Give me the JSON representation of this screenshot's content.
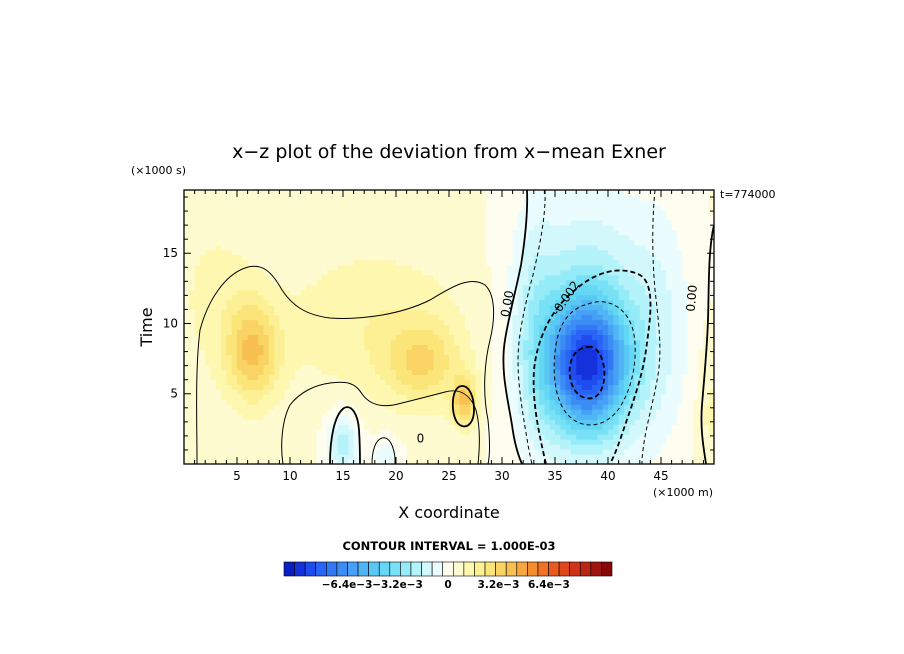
{
  "chart_data": {
    "type": "heatmap",
    "title": "x−z plot of the deviation from x−mean Exner",
    "xlabel": "X coordinate",
    "ylabel": "Time",
    "x_unit": "(×1000 m)",
    "y_unit": "(×1000 s)",
    "time_label": "t=774000",
    "xlim": [
      0,
      50
    ],
    "ylim": [
      0,
      19.5
    ],
    "x_ticks": [
      5,
      10,
      15,
      20,
      25,
      30,
      35,
      40,
      45
    ],
    "y_ticks": [
      5,
      10,
      15
    ],
    "contour_labels": [
      {
        "text": "0.00",
        "x": 30.5,
        "y": 11.4,
        "rotate": -80
      },
      {
        "text": "-0.002",
        "x": 36.0,
        "y": 11.8,
        "rotate": -55
      },
      {
        "text": "0.00",
        "x": 47.9,
        "y": 11.8,
        "rotate": -85
      },
      {
        "text": "0",
        "x": 22.3,
        "y": 1.8,
        "rotate": 0
      }
    ],
    "colorbar": {
      "interval_label": "CONTOUR INTERVAL = 1.000E-03",
      "tick_labels": [
        "−6.4e−3",
        "−3.2e−3",
        "0",
        "3.2e−3",
        "6.4e−3"
      ],
      "tick_values": [
        -0.0064,
        -0.0032,
        0,
        0.0032,
        0.0064
      ],
      "range": [
        -0.0104,
        0.0104
      ],
      "colors": [
        "#0a1ec8",
        "#1432dc",
        "#1e4cf0",
        "#2864f5",
        "#3278f5",
        "#3c8cf5",
        "#46a0f5",
        "#50b4f5",
        "#5ac8f5",
        "#64d7f5",
        "#78e1f5",
        "#96ebf8",
        "#b4f3fa",
        "#d2f8fc",
        "#eafcfd",
        "#fdfdf0",
        "#fefbd0",
        "#fef7b0",
        "#fdf094",
        "#fbe478",
        "#f9d464",
        "#f8c050",
        "#f6a63e",
        "#f48c30",
        "#f07226",
        "#ea5a20",
        "#e0461c",
        "#d03418",
        "#bc2414",
        "#a01410",
        "#88080a"
      ]
    },
    "field_blobs": [
      {
        "cx": 6.5,
        "cy": 8.0,
        "rx": 2.5,
        "ry": 3.5,
        "v": 0.0032
      },
      {
        "cx": 18.0,
        "cy": 10.0,
        "rx": 9.0,
        "ry": 5.5,
        "v": 0.0012
      },
      {
        "cx": 22.5,
        "cy": 7.2,
        "rx": 3.5,
        "ry": 2.8,
        "v": 0.0022
      },
      {
        "cx": 26.5,
        "cy": 4.5,
        "rx": 1.2,
        "ry": 1.8,
        "v": 0.0032
      },
      {
        "cx": 3.0,
        "cy": 12.0,
        "rx": 4.0,
        "ry": 6.0,
        "v": 0.0008
      },
      {
        "cx": 15.0,
        "cy": 1.5,
        "rx": 1.5,
        "ry": 2.3,
        "v": -0.0024
      },
      {
        "cx": 19.0,
        "cy": 0.8,
        "rx": 1.3,
        "ry": 1.3,
        "v": -0.0012
      },
      {
        "cx": 38.0,
        "cy": 7.0,
        "rx": 3.8,
        "ry": 4.5,
        "v": -0.0072
      },
      {
        "cx": 38.0,
        "cy": 9.5,
        "rx": 6.0,
        "ry": 9.0,
        "v": -0.003
      },
      {
        "cx": 33.0,
        "cy": 10.0,
        "rx": 2.0,
        "ry": 9.0,
        "v": -0.0012
      },
      {
        "cx": 45.0,
        "cy": 10.0,
        "rx": 3.0,
        "ry": 9.0,
        "v": -0.001
      },
      {
        "cx": 49.5,
        "cy": 4.0,
        "rx": 1.2,
        "ry": 5.0,
        "v": 0.0008
      }
    ],
    "grid": false
  }
}
